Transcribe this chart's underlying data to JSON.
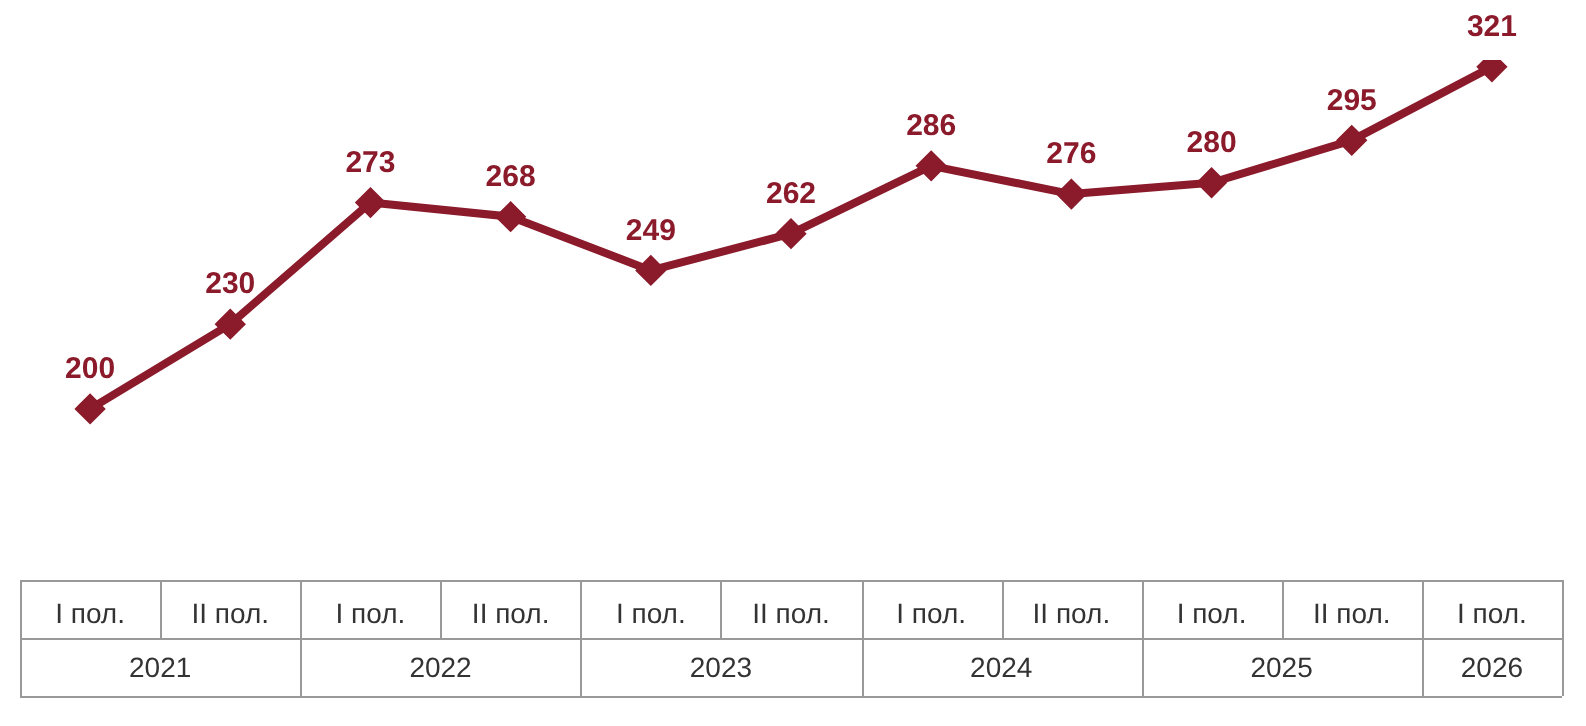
{
  "chart_data": {
    "type": "line",
    "categories": [
      "I пол.",
      "II пол.",
      "I пол.",
      "II пол.",
      "I пол.",
      "II пол.",
      "I пол.",
      "II пол.",
      "I пол.",
      "II пол.",
      "I пол."
    ],
    "series": [
      {
        "color": "#8b1a2b",
        "values": [
          200,
          230,
          273,
          268,
          249,
          262,
          286,
          276,
          280,
          295,
          321
        ]
      }
    ],
    "annotations": [
      "2021",
      "2022",
      "2023",
      "2024",
      "2025",
      "2026"
    ],
    "data_labels": true,
    "marker": "diamond",
    "line_style": "solid",
    "legend": false,
    "tick_labels": "x"
  }
}
